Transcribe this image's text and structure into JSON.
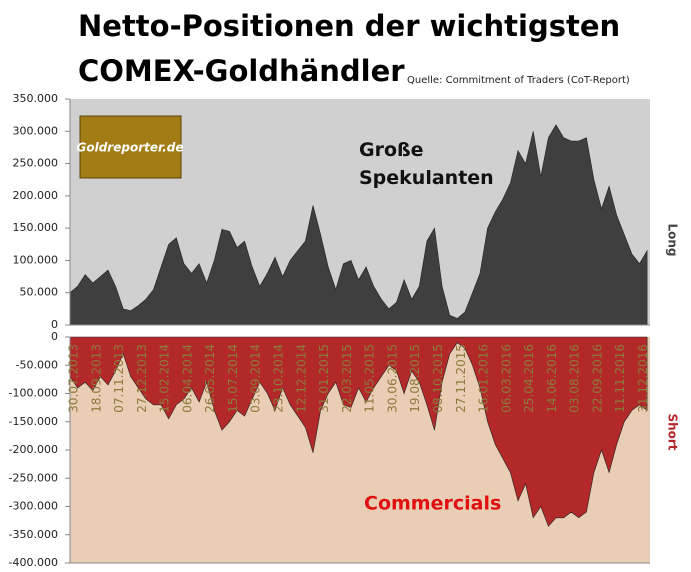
{
  "chart_data": [
    {
      "type": "area",
      "title": [
        "Netto-Positionen der wichtigsten",
        "COMEX-Goldhändler"
      ],
      "source": "Quelle: Commitment of Traders (CoT-Report)",
      "logo": "Goldreporter.de",
      "ylabel": "Long",
      "ylim": [
        0,
        350000
      ],
      "yticks": [
        0,
        {
          "value": 50000,
          "label": "50.000"
        },
        {
          "value": 100000,
          "label": "100.000"
        },
        {
          "value": 150000,
          "label": "150.000"
        },
        {
          "value": 200000,
          "label": "200.000"
        },
        {
          "value": 250000,
          "label": "250.000"
        },
        {
          "value": 300000,
          "label": "300.000"
        },
        {
          "value": 350000,
          "label": "350.000"
        }
      ],
      "series": [
        {
          "name": "Große Spekulanten",
          "color": "#3f3f3f",
          "values": [
            50000,
            60000,
            78000,
            65000,
            75000,
            85000,
            60000,
            25000,
            22000,
            30000,
            40000,
            55000,
            90000,
            125000,
            135000,
            95000,
            80000,
            95000,
            65000,
            100000,
            148000,
            145000,
            120000,
            130000,
            90000,
            60000,
            80000,
            105000,
            75000,
            100000,
            115000,
            130000,
            185000,
            140000,
            90000,
            55000,
            95000,
            100000,
            70000,
            90000,
            60000,
            40000,
            25000,
            35000,
            70000,
            40000,
            60000,
            130000,
            150000,
            60000,
            15000,
            10000,
            20000,
            50000,
            80000,
            150000,
            175000,
            195000,
            220000,
            270000,
            250000,
            300000,
            230000,
            290000,
            310000,
            290000,
            285000,
            285000,
            290000,
            225000,
            180000,
            215000,
            170000,
            140000,
            110000,
            95000,
            115000
          ]
        }
      ]
    },
    {
      "type": "area",
      "ylabel": "Short",
      "categories": [
        "30.07.2013",
        null,
        null,
        "18.09.2013",
        null,
        null,
        "07.11.2013",
        null,
        null,
        "27.12.2013",
        null,
        null,
        "15.02.2014",
        null,
        null,
        "06.04.2014",
        null,
        null,
        "26.05.2014",
        null,
        null,
        "15.07.2014",
        null,
        null,
        "03.09.2014",
        null,
        null,
        "23.10.2014",
        null,
        null,
        "12.12.2014",
        null,
        null,
        "31.01.2015",
        null,
        null,
        "22.03.2015",
        null,
        null,
        "11.05.2015",
        null,
        null,
        "30.06.2015",
        null,
        null,
        "19.08.2015",
        null,
        null,
        "08.10.2015",
        null,
        null,
        "27.11.2015",
        null,
        null,
        "16.01.2016",
        null,
        null,
        "06.03.2016",
        null,
        null,
        "25.04.2016",
        null,
        null,
        "14.06.2016",
        null,
        null,
        "03.08.2016",
        null,
        null,
        "22.09.2016",
        null,
        null,
        "11.11.2016",
        null,
        null,
        "31.12.2016",
        null
      ],
      "ylim": [
        -400000,
        0
      ],
      "yticks": [
        0,
        {
          "value": -50000,
          "label": "-50.000"
        },
        {
          "value": -100000,
          "label": "-100.000"
        },
        {
          "value": -150000,
          "label": "-150.000"
        },
        {
          "value": -200000,
          "label": "-200.000"
        },
        {
          "value": -250000,
          "label": "-250.000"
        },
        {
          "value": -300000,
          "label": "-300.000"
        },
        {
          "value": -350000,
          "label": "-350.000"
        },
        {
          "value": -400000,
          "label": "-400.000"
        }
      ],
      "series": [
        {
          "name": "Commercials",
          "color": "#b3292a",
          "values": [
            -70000,
            -90000,
            -80000,
            -95000,
            -70000,
            -85000,
            -60000,
            -30000,
            -70000,
            -90000,
            -110000,
            -120000,
            -120000,
            -145000,
            -120000,
            -110000,
            -90000,
            -115000,
            -80000,
            -130000,
            -165000,
            -150000,
            -130000,
            -140000,
            -110000,
            -80000,
            -100000,
            -130000,
            -90000,
            -120000,
            -140000,
            -160000,
            -205000,
            -130000,
            -100000,
            -80000,
            -120000,
            -125000,
            -90000,
            -115000,
            -90000,
            -70000,
            -50000,
            -60000,
            -100000,
            -60000,
            -80000,
            -120000,
            -165000,
            -80000,
            -30000,
            -10000,
            -20000,
            -50000,
            -90000,
            -150000,
            -190000,
            -215000,
            -240000,
            -290000,
            -260000,
            -320000,
            -300000,
            -335000,
            -320000,
            -320000,
            -310000,
            -320000,
            -310000,
            -240000,
            -200000,
            -240000,
            -190000,
            -150000,
            -130000,
            -120000,
            -130000
          ]
        }
      ]
    }
  ]
}
